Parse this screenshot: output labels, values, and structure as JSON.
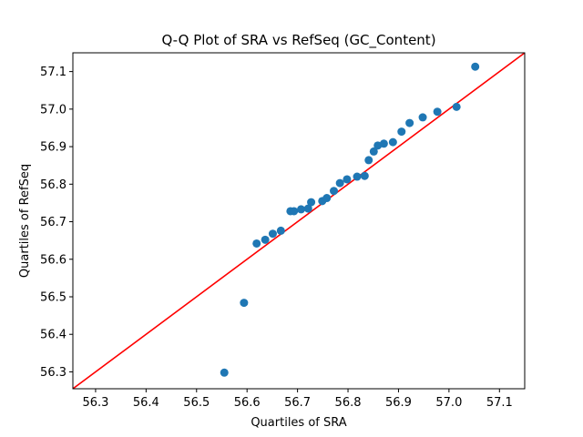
{
  "chart_data": {
    "type": "scatter",
    "title": "Q-Q Plot of SRA vs RefSeq (GC_Content)",
    "xlabel": "Quartiles of SRA",
    "ylabel": "Quartiles of RefSeq",
    "xlim": [
      56.255,
      57.15
    ],
    "ylim": [
      56.255,
      57.15
    ],
    "xticks": [
      "56.3",
      "56.4",
      "56.5",
      "56.6",
      "56.7",
      "56.8",
      "56.9",
      "57.0",
      "57.1"
    ],
    "yticks": [
      "56.3",
      "56.4",
      "56.5",
      "56.6",
      "56.7",
      "56.8",
      "56.9",
      "57.0",
      "57.1"
    ],
    "grid": false,
    "colors": {
      "points": "#1f77b4",
      "reference_line": "#ff0000"
    },
    "reference_line": {
      "type": "y=x"
    },
    "points": [
      {
        "x": 56.555,
        "y": 56.298
      },
      {
        "x": 56.594,
        "y": 56.484
      },
      {
        "x": 56.619,
        "y": 56.642
      },
      {
        "x": 56.636,
        "y": 56.652
      },
      {
        "x": 56.651,
        "y": 56.668
      },
      {
        "x": 56.667,
        "y": 56.676
      },
      {
        "x": 56.686,
        "y": 56.728
      },
      {
        "x": 56.693,
        "y": 56.728
      },
      {
        "x": 56.707,
        "y": 56.733
      },
      {
        "x": 56.721,
        "y": 56.735
      },
      {
        "x": 56.727,
        "y": 56.752
      },
      {
        "x": 56.749,
        "y": 56.755
      },
      {
        "x": 56.758,
        "y": 56.763
      },
      {
        "x": 56.772,
        "y": 56.782
      },
      {
        "x": 56.784,
        "y": 56.803
      },
      {
        "x": 56.798,
        "y": 56.813
      },
      {
        "x": 56.818,
        "y": 56.82
      },
      {
        "x": 56.833,
        "y": 56.822
      },
      {
        "x": 56.841,
        "y": 56.864
      },
      {
        "x": 56.851,
        "y": 56.887
      },
      {
        "x": 56.859,
        "y": 56.903
      },
      {
        "x": 56.871,
        "y": 56.908
      },
      {
        "x": 56.889,
        "y": 56.912
      },
      {
        "x": 56.906,
        "y": 56.94
      },
      {
        "x": 56.922,
        "y": 56.963
      },
      {
        "x": 56.948,
        "y": 56.978
      },
      {
        "x": 56.977,
        "y": 56.993
      },
      {
        "x": 57.015,
        "y": 57.006
      },
      {
        "x": 57.052,
        "y": 57.113
      }
    ]
  }
}
